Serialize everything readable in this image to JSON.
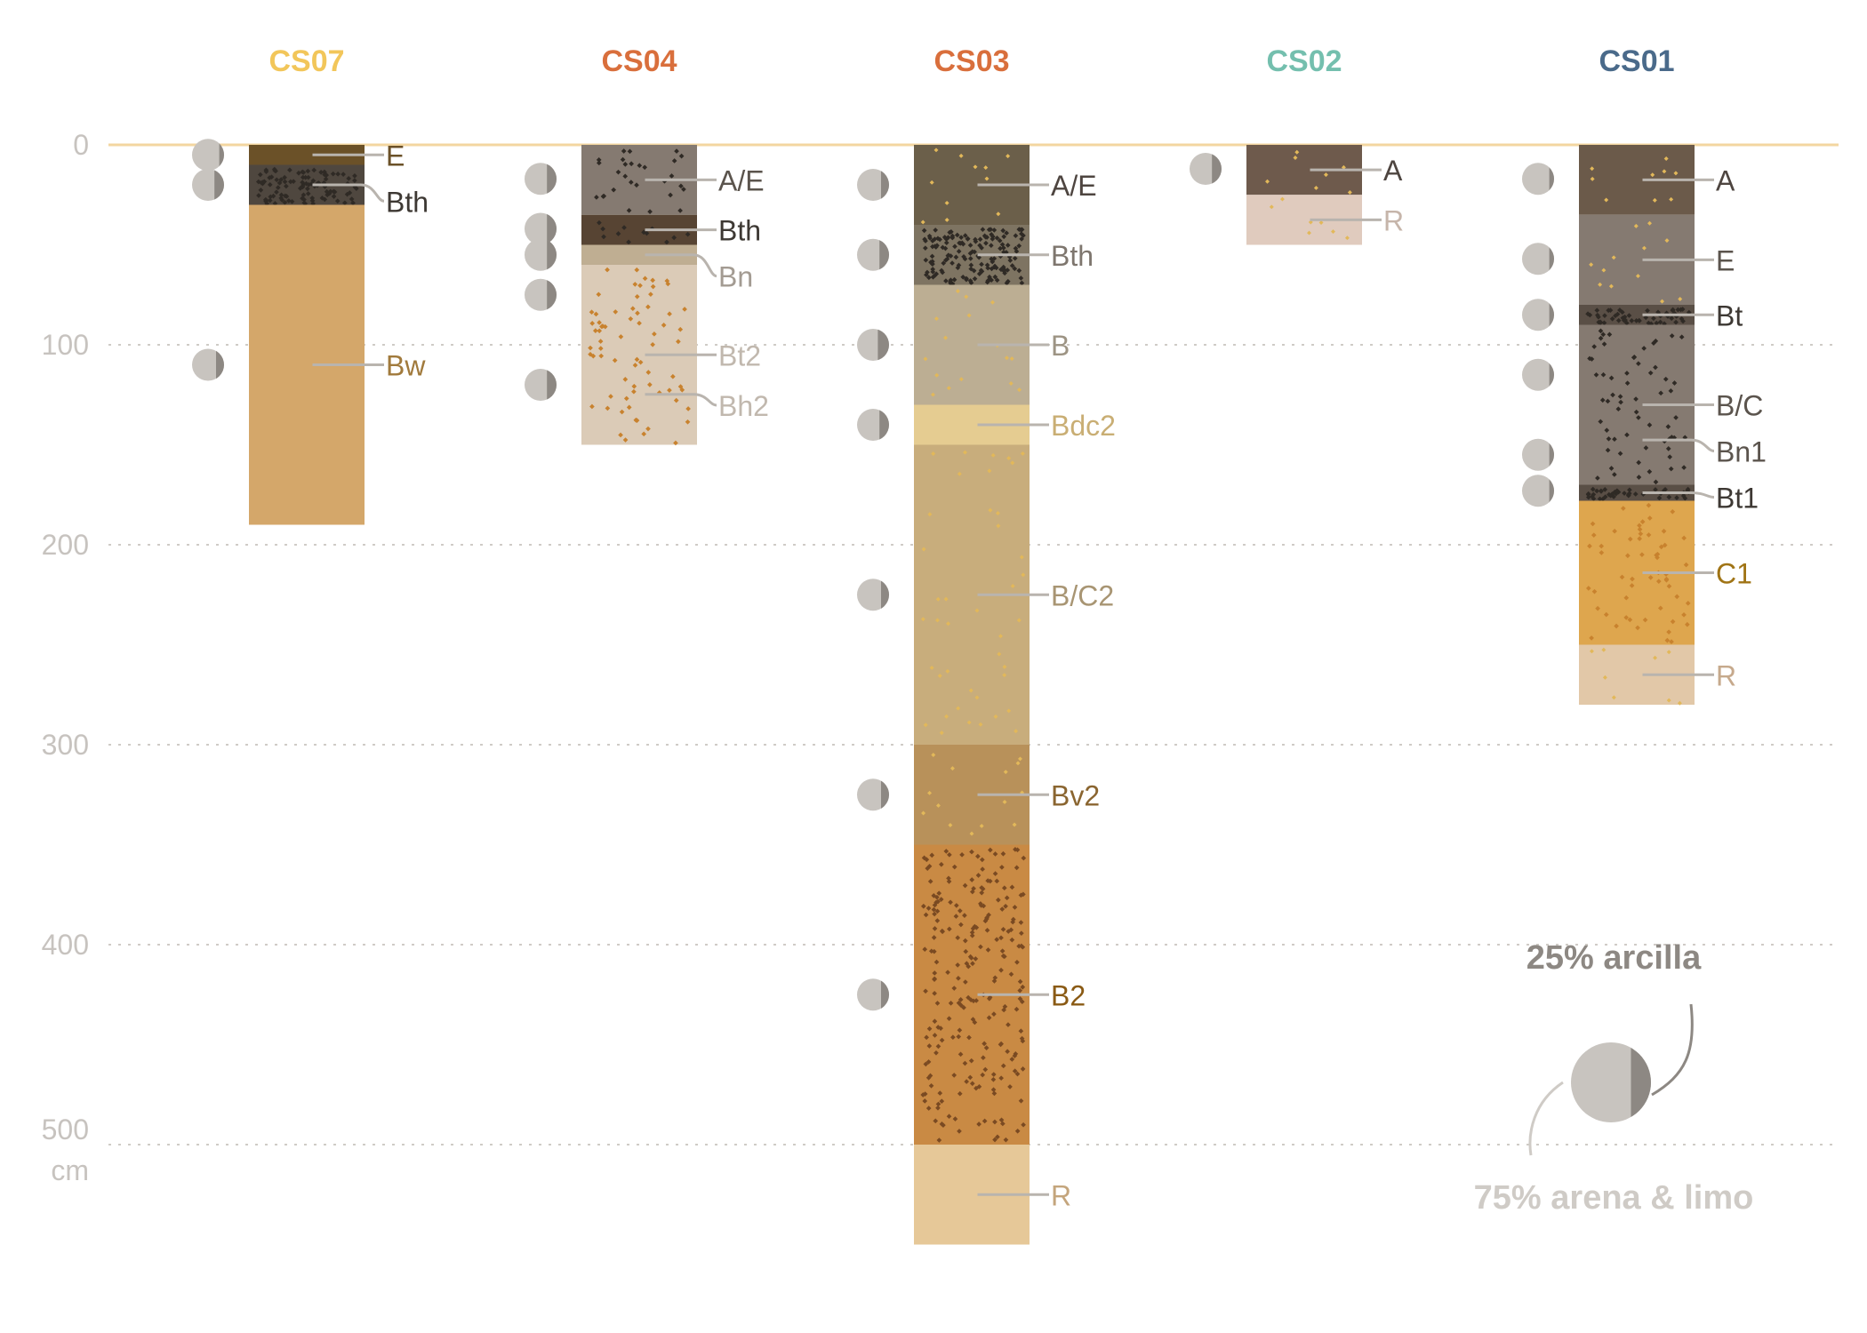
{
  "chart_data": {
    "type": "soil-profile",
    "unit": "cm",
    "y_ticks": [
      0,
      100,
      200,
      300,
      400,
      500
    ],
    "ylim": [
      0,
      550
    ],
    "colors": {
      "surface_line": "#f3d6a0",
      "grid": "#cfcbc6",
      "tick_label": "#c7c3bf",
      "legend_clay": "#8d8883",
      "legend_sand": "#cfcbc6"
    },
    "legend": {
      "clay_label": "25% arcilla",
      "sand_label": "75% arena & limo",
      "clay_fraction": 0.25
    },
    "profiles": [
      {
        "name": "CS07",
        "title_color": "#f2c65a",
        "horizons": [
          {
            "label": "E",
            "top": 0,
            "bottom": 10,
            "color": "#6b5128",
            "label_color": "#6b5128",
            "dots": "none"
          },
          {
            "label": "Bth",
            "top": 10,
            "bottom": 30,
            "color": "#4f473f",
            "label_color": "#3d3833",
            "dots": "dense-dark"
          },
          {
            "label": "Bw",
            "top": 30,
            "bottom": 190,
            "color": "#d4a76a",
            "label_color": "#a17a3c",
            "dots": "none"
          }
        ],
        "samples": [
          {
            "depth": 5,
            "clay_fraction": 0.15
          },
          {
            "depth": 20,
            "clay_fraction": 0.3
          },
          {
            "depth": 110,
            "clay_fraction": 0.25
          }
        ]
      },
      {
        "name": "CS04",
        "title_color": "#d96f3c",
        "horizons": [
          {
            "label": "A/E",
            "top": 0,
            "bottom": 35,
            "color": "#857a71",
            "label_color": "#5b544d",
            "dots": "sparse-dark"
          },
          {
            "label": "Bth",
            "top": 35,
            "bottom": 50,
            "color": "#574433",
            "label_color": "#3d3833",
            "dots": "sparse-dark"
          },
          {
            "label": "Bn",
            "top": 50,
            "bottom": 60,
            "color": "#bfae92",
            "label_color": "#a39b92",
            "dots": "none"
          },
          {
            "label": "Bt2",
            "top": 60,
            "bottom": 150,
            "color": "#dbcbb7",
            "label_color": "#c1b8ae",
            "dots": "orange"
          },
          {
            "label": "Bh2",
            "top": 60,
            "bottom": 150,
            "color": "#dbcbb7",
            "label_color": "#c1b8ae",
            "dots": "none",
            "label_only": true
          }
        ],
        "samples": [
          {
            "depth": 17,
            "clay_fraction": 0.3
          },
          {
            "depth": 42,
            "clay_fraction": 0.3
          },
          {
            "depth": 55,
            "clay_fraction": 0.3
          },
          {
            "depth": 75,
            "clay_fraction": 0.3
          },
          {
            "depth": 120,
            "clay_fraction": 0.3
          }
        ]
      },
      {
        "name": "CS03",
        "title_color": "#d96f3c",
        "horizons": [
          {
            "label": "A/E",
            "top": 0,
            "bottom": 40,
            "color": "#6b5f4a",
            "label_color": "#4e4540",
            "dots": "sparse-yellow"
          },
          {
            "label": "Bth",
            "top": 40,
            "bottom": 70,
            "color": "#7e7462",
            "label_color": "#7e766e",
            "dots": "dense-dark"
          },
          {
            "label": "B",
            "top": 70,
            "bottom": 130,
            "color": "#bcae93",
            "label_color": "#9d9484",
            "dots": "sparse-yellow"
          },
          {
            "label": "Bdc2",
            "top": 130,
            "bottom": 150,
            "color": "#e5cc91",
            "label_color": "#c9ae74",
            "dots": "none"
          },
          {
            "label": "B/C2",
            "top": 150,
            "bottom": 300,
            "color": "#c8ad7c",
            "label_color": "#a89573",
            "dots": "sparse-yellow"
          },
          {
            "label": "Bv2",
            "top": 300,
            "bottom": 350,
            "color": "#b8915a",
            "label_color": "#8a6530",
            "dots": "sparse-yellow"
          },
          {
            "label": "B2",
            "top": 350,
            "bottom": 500,
            "color": "#c98a44",
            "label_color": "#8a5a14",
            "dots": "dense-brown"
          },
          {
            "label": "R",
            "top": 500,
            "bottom": 550,
            "color": "#e6c898",
            "label_color": "#c4a57c",
            "dots": "none"
          }
        ],
        "samples": [
          {
            "depth": 20,
            "clay_fraction": 0.25
          },
          {
            "depth": 55,
            "clay_fraction": 0.3
          },
          {
            "depth": 100,
            "clay_fraction": 0.35
          },
          {
            "depth": 140,
            "clay_fraction": 0.3
          },
          {
            "depth": 225,
            "clay_fraction": 0.25
          },
          {
            "depth": 325,
            "clay_fraction": 0.25
          },
          {
            "depth": 425,
            "clay_fraction": 0.25
          }
        ]
      },
      {
        "name": "CS02",
        "title_color": "#74bfae",
        "horizons": [
          {
            "label": "A",
            "top": 0,
            "bottom": 25,
            "color": "#6e5a4c",
            "label_color": "#4e4540",
            "dots": "sparse-yellow"
          },
          {
            "label": "R",
            "top": 25,
            "bottom": 50,
            "color": "#e0cbbe",
            "label_color": "#c6b5aa",
            "dots": "sparse-yellow"
          }
        ],
        "samples": [
          {
            "depth": 12,
            "clay_fraction": 0.3
          }
        ]
      },
      {
        "name": "CS01",
        "title_color": "#4a6a8a",
        "horizons": [
          {
            "label": "A",
            "top": 0,
            "bottom": 35,
            "color": "#6b5a4a",
            "label_color": "#4e4540",
            "dots": "sparse-yellow"
          },
          {
            "label": "E",
            "top": 35,
            "bottom": 80,
            "color": "#857a71",
            "label_color": "#5b544d",
            "dots": "sparse-yellow"
          },
          {
            "label": "Bt",
            "top": 80,
            "bottom": 90,
            "color": "#5a4f46",
            "label_color": "#3d3833",
            "dots": "dense-dark"
          },
          {
            "label": "B/C",
            "top": 90,
            "bottom": 170,
            "color": "#857a71",
            "label_color": "#5b544d",
            "dots": "sparse-dark"
          },
          {
            "label": "Bn1",
            "top": 90,
            "bottom": 170,
            "color": "#857a71",
            "label_color": "#5b544d",
            "dots": "none",
            "label_only": true
          },
          {
            "label": "Bt1",
            "top": 170,
            "bottom": 178,
            "color": "#5a4f46",
            "label_color": "#3d3833",
            "dots": "dense-dark"
          },
          {
            "label": "C1",
            "top": 178,
            "bottom": 250,
            "color": "#dea64e",
            "label_color": "#a07415",
            "dots": "orange"
          },
          {
            "label": "R",
            "top": 250,
            "bottom": 280,
            "color": "#e2c8a8",
            "label_color": "#c6a98c",
            "dots": "sparse-yellow"
          }
        ],
        "samples": [
          {
            "depth": 17,
            "clay_fraction": 0.15
          },
          {
            "depth": 57,
            "clay_fraction": 0.15
          },
          {
            "depth": 85,
            "clay_fraction": 0.15
          },
          {
            "depth": 115,
            "clay_fraction": 0.15
          },
          {
            "depth": 155,
            "clay_fraction": 0.15
          },
          {
            "depth": 173,
            "clay_fraction": 0.15
          }
        ]
      }
    ]
  }
}
